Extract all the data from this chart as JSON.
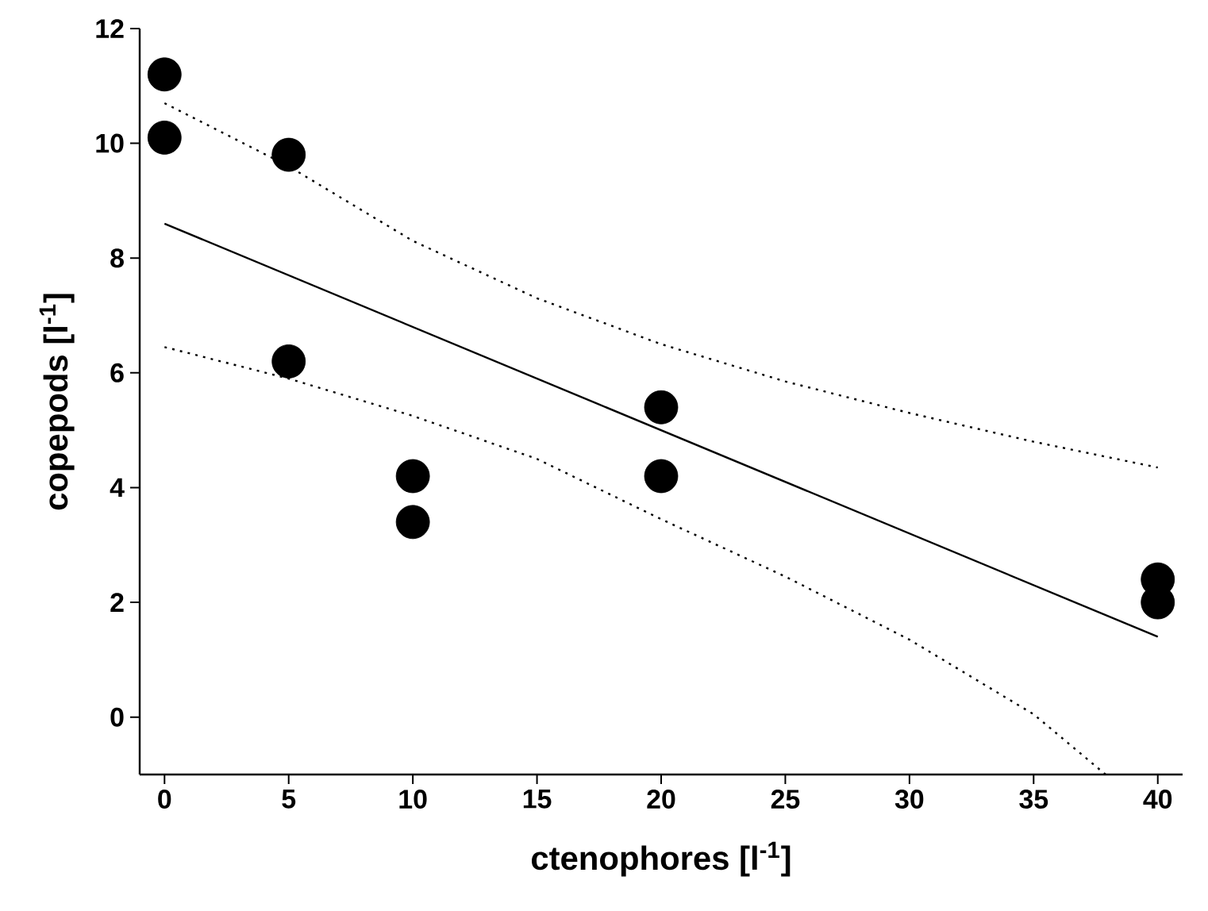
{
  "chart_data": {
    "type": "scatter",
    "xlabel": "ctenophores [l$^{-1}$]",
    "ylabel": "copepods [l$^{-1}$]",
    "xlim": [
      -1,
      41
    ],
    "ylim": [
      -1,
      12
    ],
    "xticks": [
      0,
      5,
      10,
      15,
      20,
      25,
      30,
      35,
      40
    ],
    "yticks": [
      0,
      2,
      4,
      6,
      8,
      10,
      12
    ],
    "grid": false,
    "series": [
      {
        "color": "#000000",
        "marker": "circle",
        "x": [
          0,
          0,
          5,
          5,
          10,
          10,
          20,
          20,
          40,
          40
        ],
        "values": [
          11.2,
          10.1,
          9.8,
          6.2,
          4.2,
          3.4,
          5.4,
          4.2,
          2.4,
          2.0
        ]
      },
      {
        "type": "line",
        "color": "#000000",
        "line_style": "solid",
        "marker": "none",
        "x": [
          0,
          40
        ],
        "values": [
          8.6,
          1.4
        ]
      },
      {
        "type": "line",
        "color": "#000000",
        "line_style": "dotted",
        "marker": "none",
        "x": [
          0,
          5,
          10,
          15,
          20,
          25,
          30,
          35,
          40
        ],
        "values": [
          10.7,
          9.6,
          8.3,
          7.3,
          6.5,
          5.85,
          5.3,
          4.8,
          4.35
        ]
      },
      {
        "type": "line",
        "color": "#000000",
        "line_style": "dotted",
        "marker": "none",
        "x": [
          0,
          5,
          10,
          15,
          20,
          25,
          30,
          35,
          37.9
        ],
        "values": [
          6.45,
          5.9,
          5.25,
          4.5,
          3.45,
          2.45,
          1.35,
          0.05,
          -1.0
        ]
      }
    ]
  }
}
